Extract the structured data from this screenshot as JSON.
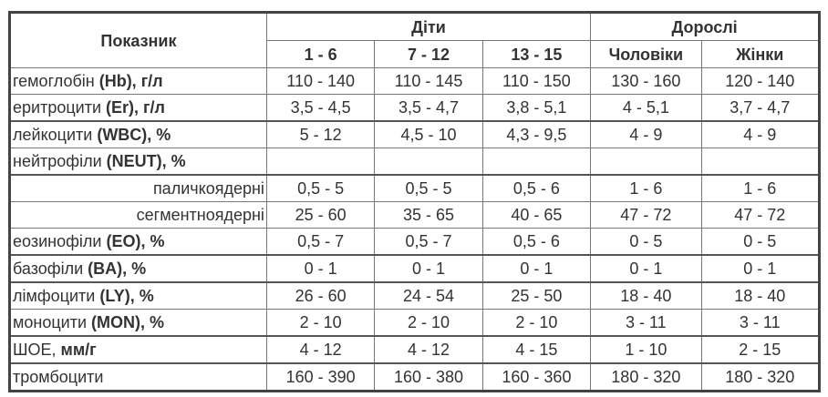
{
  "header": {
    "indicator": "Показник",
    "children": "Діти",
    "adults": "Дорослі",
    "columns": [
      "1 - 6",
      "7 - 12",
      "13 - 15",
      "Чоловіки",
      "Жінки"
    ]
  },
  "rows": [
    {
      "label": "гемоглобін ",
      "label_bold": "(Hb), г/л",
      "sub": false,
      "values": [
        "110 - 140",
        "110 - 145",
        "110 - 150",
        "130 - 160",
        "120 - 140"
      ]
    },
    {
      "label": "еритроцити ",
      "label_bold": "(Er), г/л",
      "sub": false,
      "values": [
        "3,5 - 4,5",
        "3,5 - 4,7",
        "3,8 - 5,1",
        "4 - 5,1",
        "3,7 - 4,7"
      ]
    },
    {
      "label": "лейкоцити ",
      "label_bold": "(WBC), %",
      "sub": false,
      "values": [
        "5 - 12",
        "4,5 - 10",
        "4,3 - 9,5",
        "4 - 9",
        "4 - 9"
      ]
    },
    {
      "label": "нейтрофіли ",
      "label_bold": "(NEUT), %",
      "sub": false,
      "values": [
        "",
        "",
        "",
        "",
        ""
      ]
    },
    {
      "label": "паличкоядерні",
      "label_bold": "",
      "sub": true,
      "values": [
        "0,5 - 5",
        "0,5 - 5",
        "0,5 - 6",
        "1 - 6",
        "1 - 6"
      ]
    },
    {
      "label": "сегментноядерні",
      "label_bold": "",
      "sub": true,
      "values": [
        "25 - 60",
        "35 - 65",
        "40 - 65",
        "47 - 72",
        "47 - 72"
      ]
    },
    {
      "label": "еозинофіли ",
      "label_bold": "(EO), %",
      "sub": false,
      "values": [
        "0,5 - 7",
        "0,5 - 7",
        "0,5 - 6",
        "0 - 5",
        "0 - 5"
      ]
    },
    {
      "label": "базофіли ",
      "label_bold": "(BA), %",
      "sub": false,
      "values": [
        "0 - 1",
        "0 - 1",
        "0 - 1",
        "0 - 1",
        "0 - 1"
      ]
    },
    {
      "label": "лімфоцити ",
      "label_bold": "(LY), %",
      "sub": false,
      "values": [
        "26 - 60",
        "24 - 54",
        "25 - 50",
        "18 - 40",
        "18 - 40"
      ]
    },
    {
      "label": "моноцити ",
      "label_bold": "(MON), %",
      "sub": false,
      "values": [
        "2 - 10",
        "2 - 10",
        "2 - 10",
        "3 - 11",
        "3 - 11"
      ]
    },
    {
      "label": "ШОЕ, ",
      "label_bold": "мм/г",
      "sub": false,
      "values": [
        "4 - 12",
        "4 - 12",
        "4 - 15",
        "1 - 10",
        "2 - 15"
      ]
    },
    {
      "label": "тромбоцити",
      "label_bold": "",
      "sub": false,
      "values": [
        "160 - 390",
        "160 - 380",
        "160 - 360",
        "180 - 320",
        "180 - 320"
      ]
    }
  ]
}
